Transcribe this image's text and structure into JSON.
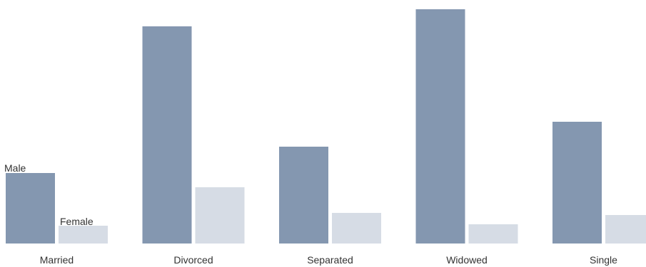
{
  "chart_data": {
    "type": "bar",
    "title": "",
    "xlabel": "",
    "ylabel": "",
    "categories": [
      "Married",
      "Divorced",
      "Separated",
      "Widowed",
      "Single"
    ],
    "series": [
      {
        "name": "Male",
        "color": "#8497b0",
        "values": [
          99,
          305,
          136,
          329,
          171
        ]
      },
      {
        "name": "Female",
        "color": "#d6dce5",
        "values": [
          25,
          79,
          43,
          27,
          40
        ]
      }
    ],
    "ylim": [
      0,
      330
    ],
    "grid": false,
    "legend": "none",
    "axes_visible": false
  }
}
